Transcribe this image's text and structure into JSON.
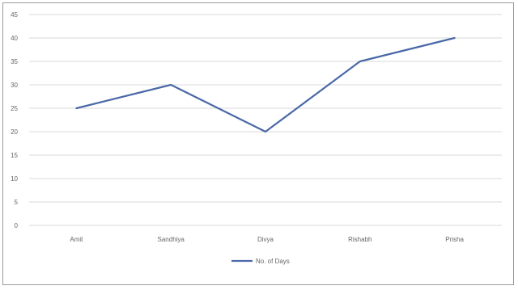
{
  "chart_data": {
    "type": "line",
    "categories": [
      "Amit",
      "Sandhiya",
      "Divya",
      "Rishabh",
      "Prisha"
    ],
    "series": [
      {
        "name": "No. of Days",
        "values": [
          25,
          30,
          20,
          35,
          40
        ],
        "color": "#4a68a8"
      }
    ],
    "ylim": [
      0,
      45
    ],
    "yticks": [
      0,
      5,
      10,
      15,
      20,
      25,
      30,
      35,
      40,
      45
    ],
    "grid": true,
    "legend": "bottom",
    "gridColor": "#d9d9d9"
  }
}
